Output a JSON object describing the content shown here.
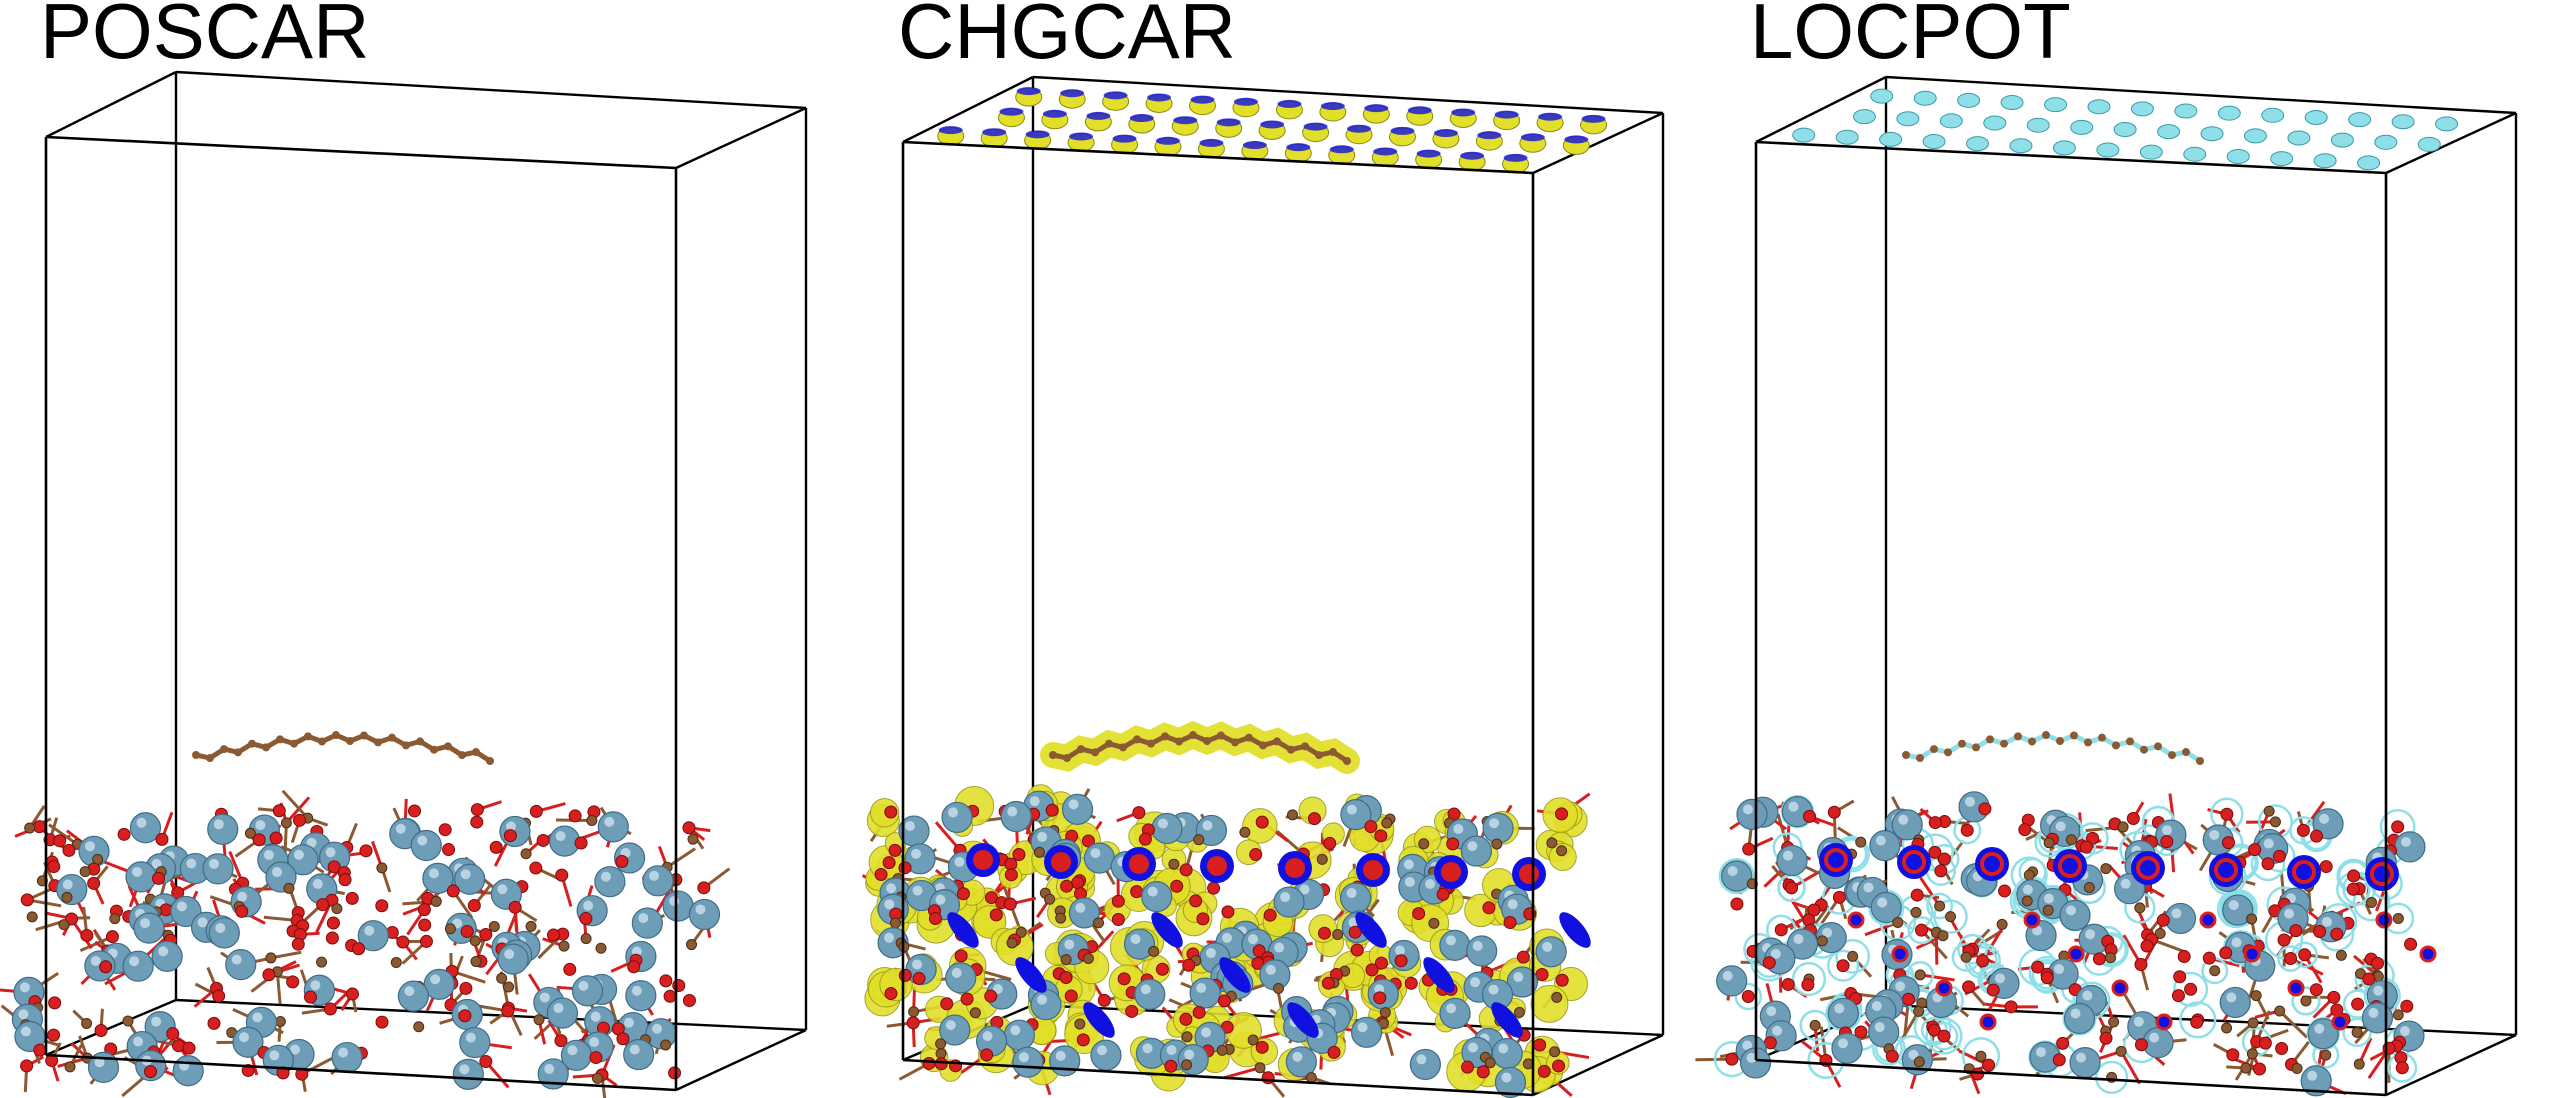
{
  "panels": [
    {
      "title": "POSCAR",
      "style": "structure"
    },
    {
      "title": "CHGCAR",
      "style": "charge"
    },
    {
      "title": "LOCPOT",
      "style": "potential"
    }
  ],
  "colors": {
    "cell_edge": "#000000",
    "metal_atom": "#6e9db8",
    "oxygen_atom": "#d81f1f",
    "carbon_atom": "#8b5a32",
    "charge_isosurface": "#e2df2a",
    "charge_section": "#1010e0",
    "potential_isosurface": "#8fdfe8"
  }
}
